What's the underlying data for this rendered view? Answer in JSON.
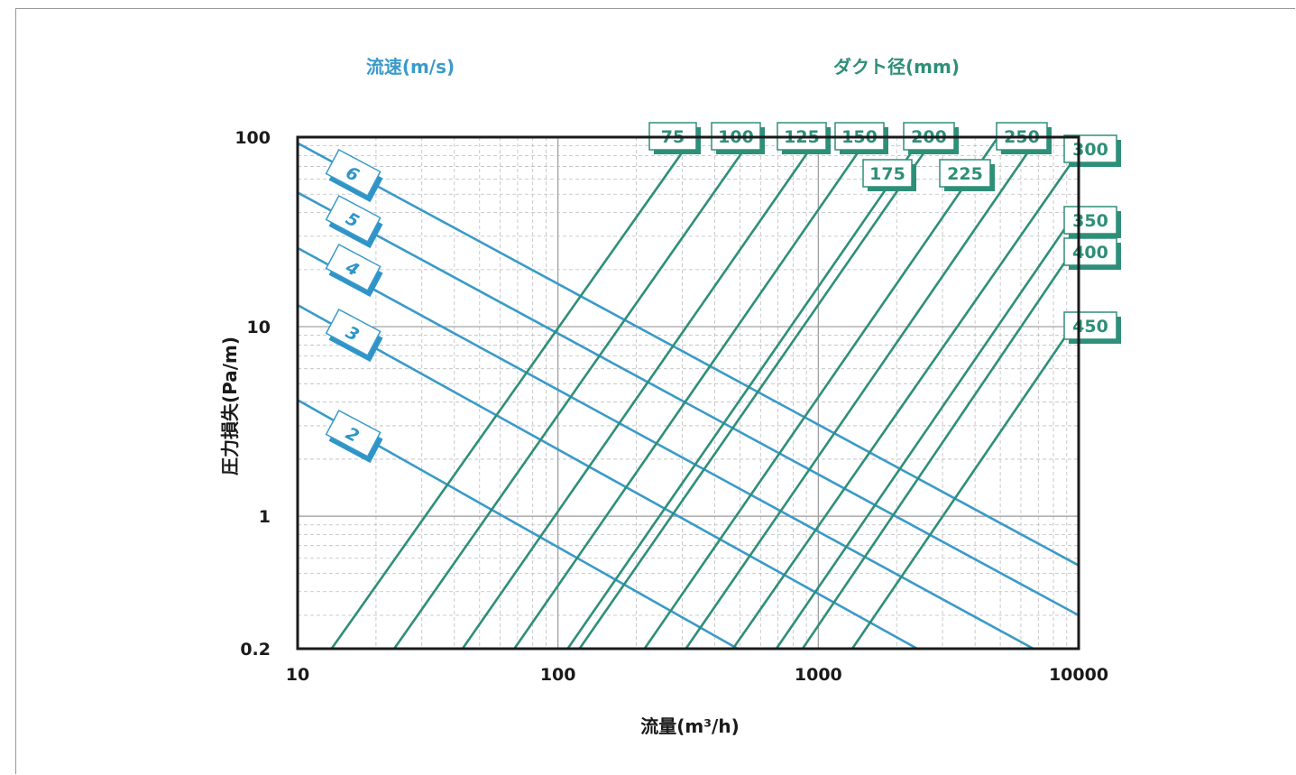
{
  "chart_data": {
    "type": "line",
    "title_velocity": "流速(m/s)",
    "title_duct": "ダクト径(mm)",
    "xlabel": "流量(m³/h)",
    "ylabel": "圧力損失(Pa/m)",
    "x_scale": "log",
    "y_scale": "log",
    "xlim": [
      10,
      10000
    ],
    "ylim": [
      0.2,
      100
    ],
    "x_ticks": [
      {
        "value": 10,
        "label": "10"
      },
      {
        "value": 100,
        "label": "100"
      },
      {
        "value": 1000,
        "label": "1000"
      },
      {
        "value": 10000,
        "label": "10000"
      }
    ],
    "y_ticks": [
      {
        "value": 100,
        "label": "100"
      },
      {
        "value": 10,
        "label": "10"
      },
      {
        "value": 1,
        "label": "1"
      },
      {
        "value": 0.2,
        "label": "0.2"
      }
    ],
    "grid": true,
    "velocity_series": [
      {
        "name": "6",
        "points": [
          [
            10,
            93
          ],
          [
            10000,
            0.55
          ]
        ]
      },
      {
        "name": "5",
        "points": [
          [
            10,
            51
          ],
          [
            10000,
            0.3
          ]
        ]
      },
      {
        "name": "4",
        "points": [
          [
            10,
            26
          ],
          [
            6700,
            0.2
          ]
        ]
      },
      {
        "name": "3",
        "points": [
          [
            10,
            13
          ],
          [
            2400,
            0.2
          ]
        ]
      },
      {
        "name": "2",
        "points": [
          [
            10,
            4.1
          ],
          [
            490,
            0.2
          ]
        ]
      }
    ],
    "duct_series": [
      {
        "name": "75",
        "points": [
          [
            13.5,
            0.2
          ],
          [
            330,
            100
          ]
        ]
      },
      {
        "name": "100",
        "points": [
          [
            23.5,
            0.2
          ],
          [
            560,
            100
          ]
        ]
      },
      {
        "name": "125",
        "points": [
          [
            43,
            0.2
          ],
          [
            1000,
            100
          ]
        ]
      },
      {
        "name": "150",
        "points": [
          [
            68,
            0.2
          ],
          [
            1560,
            100
          ]
        ]
      },
      {
        "name": "175",
        "points": [
          [
            109,
            0.2
          ],
          [
            2500,
            100
          ]
        ]
      },
      {
        "name": "200",
        "points": [
          [
            121,
            0.2
          ],
          [
            2800,
            100
          ]
        ]
      },
      {
        "name": "225",
        "points": [
          [
            215,
            0.2
          ],
          [
            4900,
            100
          ]
        ]
      },
      {
        "name": "250",
        "points": [
          [
            310,
            0.2
          ],
          [
            7000,
            100
          ]
        ]
      },
      {
        "name": "300",
        "points": [
          [
            470,
            0.2
          ],
          [
            10000,
            83
          ]
        ]
      },
      {
        "name": "350",
        "points": [
          [
            690,
            0.2
          ],
          [
            10000,
            42
          ]
        ]
      },
      {
        "name": "400",
        "points": [
          [
            870,
            0.2
          ],
          [
            10000,
            28
          ]
        ]
      },
      {
        "name": "450",
        "points": [
          [
            1350,
            0.2
          ],
          [
            10000,
            11.2
          ]
        ]
      }
    ]
  },
  "colors": {
    "velocity_line": "#3a9ac9",
    "duct_line": "#2e8f78",
    "axis": "#1a1a1a",
    "grid": "#bdbdbd",
    "label_shadow": "#2e8f78",
    "velocity_label_shadow": "#2f95c9"
  }
}
